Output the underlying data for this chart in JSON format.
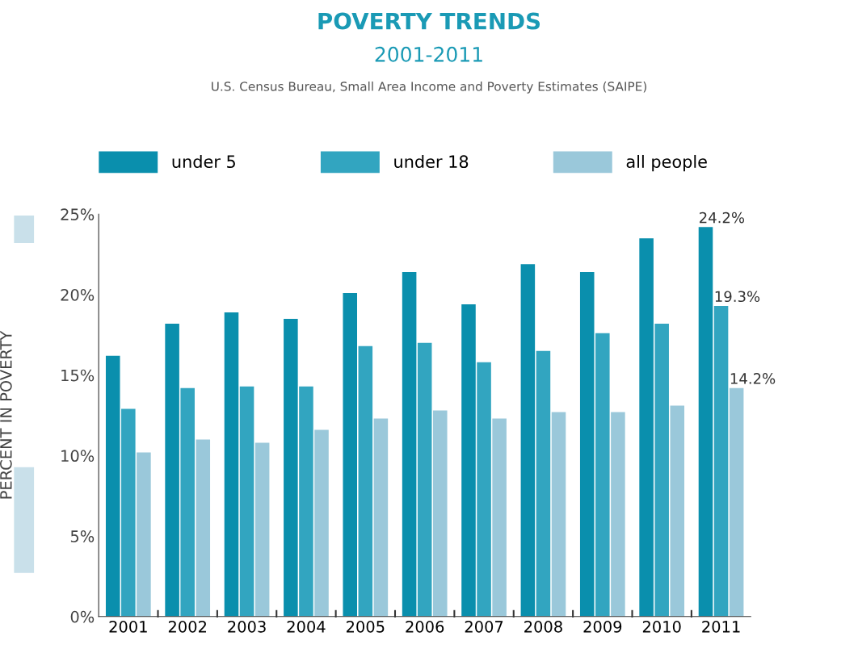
{
  "chart_data": {
    "type": "bar",
    "title": "POVERTY TRENDS",
    "subtitle": "2001-2011",
    "annotations": [
      "U.S. Census Bureau, Small Area Income and Poverty Estimates (SAIPE)"
    ],
    "ylabel": "PERCENT IN POVERTY",
    "categories": [
      "2001",
      "2002",
      "2003",
      "2004",
      "2005",
      "2006",
      "2007",
      "2008",
      "2009",
      "2010",
      "2011"
    ],
    "series": [
      {
        "name": "under 5",
        "color": "#0a8fad",
        "values": [
          16.2,
          18.2,
          18.9,
          18.5,
          20.1,
          21.4,
          19.4,
          21.9,
          21.4,
          23.5,
          24.2
        ],
        "value_labels": [
          null,
          null,
          null,
          null,
          null,
          null,
          null,
          null,
          null,
          null,
          "24.2%"
        ]
      },
      {
        "name": "under 18",
        "color": "#32a5c0",
        "values": [
          12.9,
          14.2,
          14.3,
          14.3,
          16.8,
          17.0,
          15.8,
          16.5,
          17.6,
          18.2,
          19.3
        ],
        "value_labels": [
          null,
          null,
          null,
          null,
          null,
          null,
          null,
          null,
          null,
          null,
          "19.3%"
        ]
      },
      {
        "name": "all people",
        "color": "#9ac8da",
        "values": [
          10.2,
          11.0,
          10.8,
          11.6,
          12.3,
          12.8,
          12.3,
          12.7,
          12.7,
          13.1,
          14.2
        ],
        "value_labels": [
          null,
          null,
          null,
          null,
          null,
          null,
          null,
          null,
          null,
          null,
          "14.2%"
        ]
      }
    ],
    "ylim": [
      0,
      25
    ],
    "yticks": [
      {
        "value": 0,
        "label": "0%"
      },
      {
        "value": 5,
        "label": "5%"
      },
      {
        "value": 10,
        "label": "10%"
      },
      {
        "value": 15,
        "label": "15%"
      },
      {
        "value": 20,
        "label": "20%"
      },
      {
        "value": 25,
        "label": "25%"
      }
    ],
    "grid": false,
    "legend": "top"
  }
}
